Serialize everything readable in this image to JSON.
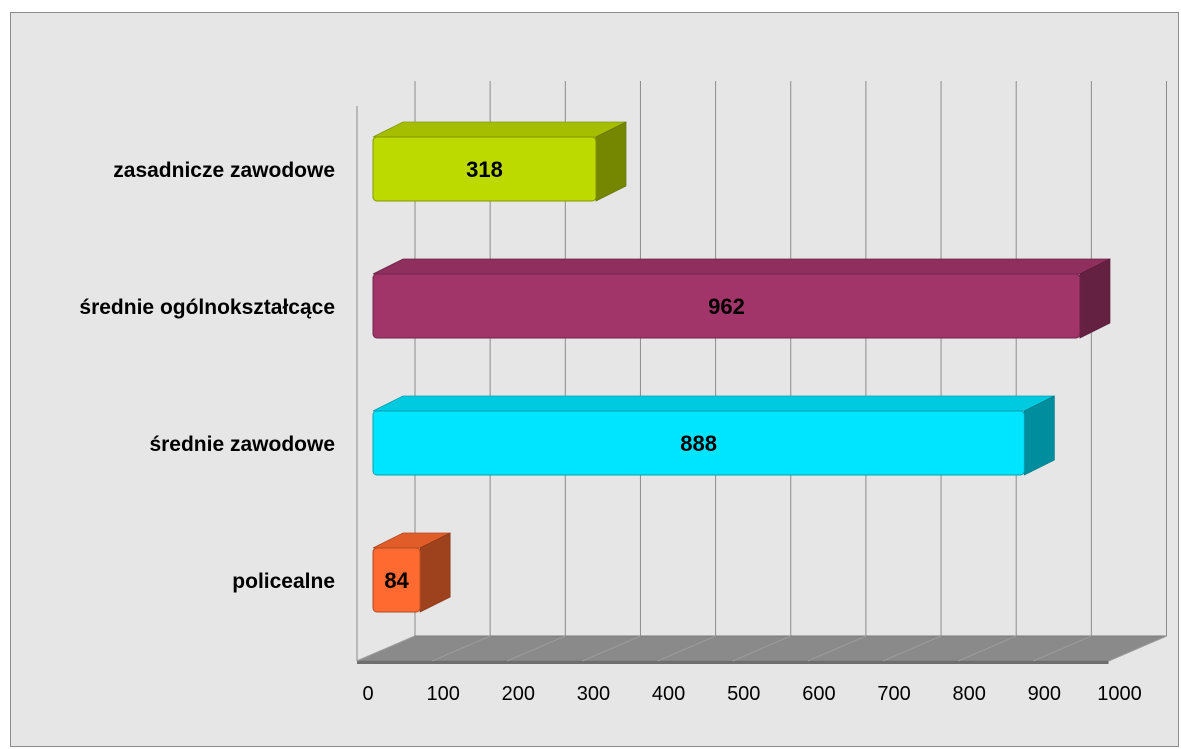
{
  "chart_data": {
    "type": "bar",
    "orientation": "horizontal",
    "style": "3d",
    "title": "",
    "xlabel": "",
    "ylabel": "",
    "categories": [
      "zasadnicze zawodowe",
      "średnie ogólnokształcące",
      "średnie zawodowe",
      "policealne"
    ],
    "values": [
      318,
      962,
      888,
      84
    ],
    "value_labels": [
      "318",
      "962",
      "888",
      "84"
    ],
    "colors": [
      "#bcd900",
      "#a1356a",
      "#00e5ff",
      "#ff6a30"
    ],
    "xlim": [
      0,
      1000
    ],
    "xticks": [
      "0",
      "100",
      "200",
      "300",
      "400",
      "500",
      "600",
      "700",
      "800",
      "900",
      "1000"
    ],
    "grid": true,
    "legend": "none"
  }
}
